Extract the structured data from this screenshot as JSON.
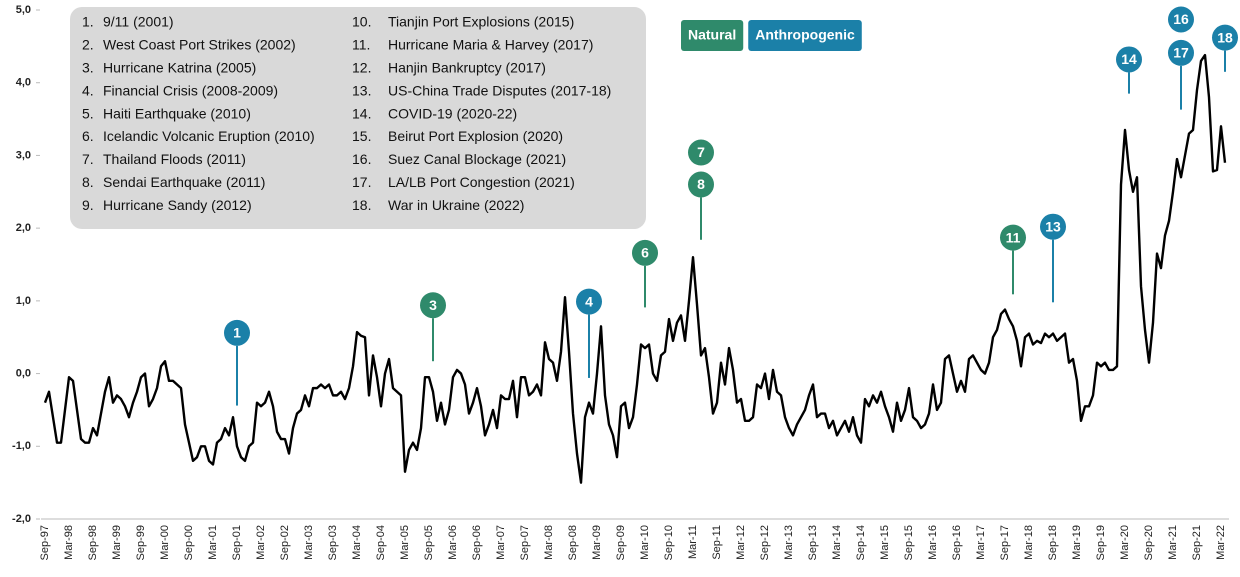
{
  "chart_data": {
    "type": "line",
    "ylim": [
      -2,
      5
    ],
    "yticks": [
      {
        "value": -2,
        "label": "-2,0"
      },
      {
        "value": -1,
        "label": "-1,0"
      },
      {
        "value": 0,
        "label": "0,0"
      },
      {
        "value": 1,
        "label": "1,0"
      },
      {
        "value": 2,
        "label": "2,0"
      },
      {
        "value": 3,
        "label": "3,0"
      },
      {
        "value": 4,
        "label": "4,0"
      },
      {
        "value": 5,
        "label": "5,0"
      }
    ],
    "color": "#000000",
    "categories": [
      "Sep-97",
      null,
      null,
      null,
      null,
      null,
      "Mar-98",
      null,
      null,
      null,
      null,
      null,
      "Sep-98",
      null,
      null,
      null,
      null,
      null,
      "Mar-99",
      null,
      null,
      null,
      null,
      null,
      "Sep-99",
      null,
      null,
      null,
      null,
      null,
      "Mar-00",
      null,
      null,
      null,
      null,
      null,
      "Sep-00",
      null,
      null,
      null,
      null,
      null,
      "Mar-01",
      null,
      null,
      null,
      null,
      null,
      "Sep-01",
      null,
      null,
      null,
      null,
      null,
      "Mar-02",
      null,
      null,
      null,
      null,
      null,
      "Sep-02",
      null,
      null,
      null,
      null,
      null,
      "Mar-03",
      null,
      null,
      null,
      null,
      null,
      "Sep-03",
      null,
      null,
      null,
      null,
      null,
      "Mar-04",
      null,
      null,
      null,
      null,
      null,
      "Sep-04",
      null,
      null,
      null,
      null,
      null,
      "Mar-05",
      null,
      null,
      null,
      null,
      null,
      "Sep-05",
      null,
      null,
      null,
      null,
      null,
      "Mar-06",
      null,
      null,
      null,
      null,
      null,
      "Sep-06",
      null,
      null,
      null,
      null,
      null,
      "Mar-07",
      null,
      null,
      null,
      null,
      null,
      "Sep-07",
      null,
      null,
      null,
      null,
      null,
      "Mar-08",
      null,
      null,
      null,
      null,
      null,
      "Sep-08",
      null,
      null,
      null,
      null,
      null,
      "Mar-09",
      null,
      null,
      null,
      null,
      null,
      "Sep-09",
      null,
      null,
      null,
      null,
      null,
      "Mar-10",
      null,
      null,
      null,
      null,
      null,
      "Sep-10",
      null,
      null,
      null,
      null,
      null,
      "Mar-11",
      null,
      null,
      null,
      null,
      null,
      "Sep-11",
      null,
      null,
      null,
      null,
      null,
      "Mar-12",
      null,
      null,
      null,
      null,
      null,
      "Sep-12",
      null,
      null,
      null,
      null,
      null,
      "Mar-13",
      null,
      null,
      null,
      null,
      null,
      "Sep-13",
      null,
      null,
      null,
      null,
      null,
      "Mar-14",
      null,
      null,
      null,
      null,
      null,
      "Sep-14",
      null,
      null,
      null,
      null,
      null,
      "Mar-15",
      null,
      null,
      null,
      null,
      null,
      "Sep-15",
      null,
      null,
      null,
      null,
      null,
      "Mar-16",
      null,
      null,
      null,
      null,
      null,
      "Sep-16",
      null,
      null,
      null,
      null,
      null,
      "Mar-17",
      null,
      null,
      null,
      null,
      null,
      "Sep-17",
      null,
      null,
      null,
      null,
      null,
      "Mar-18",
      null,
      null,
      null,
      null,
      null,
      "Sep-18",
      null,
      null,
      null,
      null,
      null,
      "Mar-19",
      null,
      null,
      null,
      null,
      null,
      "Sep-19",
      null,
      null,
      null,
      null,
      null,
      "Mar-20",
      null,
      null,
      null,
      null,
      null,
      "Sep-20",
      null,
      null,
      null,
      null,
      null,
      "Mar-21",
      null,
      null,
      null,
      null,
      null,
      "Sep-21",
      null,
      null,
      null,
      null,
      null,
      "Mar-22",
      null
    ],
    "values": [
      -0.4,
      -0.25,
      -0.6,
      -0.95,
      -0.95,
      -0.5,
      -0.05,
      -0.1,
      -0.5,
      -0.9,
      -0.95,
      -0.95,
      -0.75,
      -0.85,
      -0.55,
      -0.25,
      -0.05,
      -0.4,
      -0.3,
      -0.35,
      -0.45,
      -0.6,
      -0.4,
      -0.25,
      -0.05,
      0,
      -0.45,
      -0.35,
      -0.2,
      0.1,
      0.17,
      -0.1,
      -0.1,
      -0.15,
      -0.2,
      -0.7,
      -0.95,
      -1.2,
      -1.15,
      -1,
      -1,
      -1.2,
      -1.25,
      -0.95,
      -0.9,
      -0.75,
      -0.85,
      -0.6,
      -1,
      -1.15,
      -1.2,
      -1,
      -0.95,
      -0.4,
      -0.45,
      -0.4,
      -0.25,
      -0.45,
      -0.8,
      -0.9,
      -0.9,
      -1.1,
      -0.75,
      -0.55,
      -0.5,
      -0.3,
      -0.45,
      -0.2,
      -0.2,
      -0.15,
      -0.2,
      -0.15,
      -0.3,
      -0.3,
      -0.25,
      -0.35,
      -0.2,
      0.1,
      0.57,
      0.52,
      0.5,
      -0.3,
      0.25,
      -0.05,
      -0.45,
      0,
      0.2,
      -0.2,
      -0.25,
      -0.3,
      -1.35,
      -1.05,
      -0.95,
      -1.05,
      -0.75,
      -0.05,
      -0.05,
      -0.25,
      -0.65,
      -0.4,
      -0.7,
      -0.5,
      -0.05,
      0.05,
      0,
      -0.15,
      -0.55,
      -0.4,
      -0.2,
      -0.45,
      -0.85,
      -0.7,
      -0.5,
      -0.75,
      -0.3,
      -0.35,
      -0.35,
      -0.1,
      -0.6,
      -0.05,
      -0.05,
      -0.3,
      -0.25,
      -0.15,
      -0.3,
      0.43,
      0.2,
      0.15,
      -0.1,
      0.3,
      1.05,
      0.3,
      -0.55,
      -1.1,
      -1.5,
      -0.6,
      -0.4,
      -0.55,
      0,
      0.65,
      -0.3,
      -0.7,
      -0.85,
      -1.15,
      -0.45,
      -0.4,
      -0.75,
      -0.6,
      -0.15,
      0.4,
      0.35,
      0.4,
      0,
      -0.1,
      0.25,
      0.3,
      0.75,
      0.45,
      0.7,
      0.8,
      0.45,
      1.0,
      1.6,
      0.95,
      0.25,
      0.35,
      -0.05,
      -0.55,
      -0.4,
      0.15,
      -0.15,
      0.35,
      0.05,
      -0.4,
      -0.35,
      -0.65,
      -0.65,
      -0.6,
      -0.15,
      -0.2,
      0,
      -0.35,
      0.05,
      -0.25,
      -0.3,
      -0.6,
      -0.75,
      -0.85,
      -0.7,
      -0.6,
      -0.5,
      -0.3,
      -0.15,
      -0.6,
      -0.55,
      -0.55,
      -0.75,
      -0.65,
      -0.85,
      -0.75,
      -0.65,
      -0.8,
      -0.6,
      -0.85,
      -0.95,
      -0.35,
      -0.45,
      -0.3,
      -0.4,
      -0.25,
      -0.45,
      -0.6,
      -0.8,
      -0.4,
      -0.65,
      -0.5,
      -0.2,
      -0.6,
      -0.65,
      -0.75,
      -0.7,
      -0.55,
      -0.15,
      -0.5,
      -0.4,
      0.2,
      0.25,
      0,
      -0.25,
      -0.1,
      -0.25,
      0.2,
      0.25,
      0.15,
      0.05,
      0,
      0.15,
      0.5,
      0.6,
      0.82,
      0.88,
      0.75,
      0.65,
      0.45,
      0.1,
      0.5,
      0.55,
      0.4,
      0.45,
      0.42,
      0.55,
      0.5,
      0.55,
      0.45,
      0.5,
      0.55,
      0.15,
      0.2,
      -0.1,
      -0.65,
      -0.45,
      -0.45,
      -0.3,
      0.15,
      0.1,
      0.15,
      0.05,
      0.05,
      0.1,
      2.6,
      3.35,
      2.8,
      2.5,
      2.7,
      1.2,
      0.6,
      0.15,
      0.7,
      1.65,
      1.45,
      1.9,
      2.1,
      2.5,
      2.95,
      2.7,
      3.0,
      3.3,
      3.35,
      3.9,
      4.3,
      4.38,
      3.8,
      2.78,
      2.8,
      3.4,
      2.9
    ],
    "legend": [
      {
        "name": "Natural",
        "color": "#2f8a6b"
      },
      {
        "name": "Anthropogenic",
        "color": "#1b80a8"
      }
    ],
    "events": [
      {
        "num": "1.",
        "name": "9/11 (2001)"
      },
      {
        "num": "2.",
        "name": "West Coast Port Strikes (2002)"
      },
      {
        "num": "3.",
        "name": "Hurricane Katrina (2005)"
      },
      {
        "num": "4.",
        "name": "Financial Crisis (2008-2009)"
      },
      {
        "num": "5.",
        "name": "Haiti Earthquake (2010)"
      },
      {
        "num": "6.",
        "name": "Icelandic Volcanic Eruption (2010)"
      },
      {
        "num": "7.",
        "name": "Thailand Floods (2011)"
      },
      {
        "num": "8.",
        "name": "Sendai Earthquake (2011)"
      },
      {
        "num": "9.",
        "name": "Hurricane Sandy (2012)"
      },
      {
        "num": "10.",
        "name": "Tianjin Port Explosions (2015)"
      },
      {
        "num": "11.",
        "name": "Hurricane Maria & Harvey (2017)"
      },
      {
        "num": "12.",
        "name": "Hanjin Bankruptcy (2017)"
      },
      {
        "num": "13.",
        "name": "US-China Trade Disputes (2017-18)"
      },
      {
        "num": "14.",
        "name": "COVID-19 (2020-22)"
      },
      {
        "num": "15.",
        "name": "Beirut Port Explosion (2020)"
      },
      {
        "num": "16.",
        "name": "Suez Canal Blockage (2021)"
      },
      {
        "num": "17.",
        "name": "LA/LB Port Congestion (2021)"
      },
      {
        "num": "18.",
        "name": "War in Ukraine (2022)"
      }
    ],
    "annotations": [
      {
        "label": "1",
        "x": 48,
        "y": 0.56,
        "stem_to": -0.44,
        "color": "#1b80a8"
      },
      {
        "label": "3",
        "x": 97,
        "y": 0.94,
        "stem_to": 0.17,
        "color": "#2f8a6b"
      },
      {
        "label": "4",
        "x": 136,
        "y": 0.99,
        "stem_to": -0.06,
        "color": "#1b80a8"
      },
      {
        "label": "6",
        "x": 150,
        "y": 1.66,
        "stem_to": 0.91,
        "color": "#2f8a6b"
      },
      {
        "label": "7",
        "x": 164,
        "y": 3.04,
        "color": "#2f8a6b"
      },
      {
        "label": "8",
        "x": 164,
        "y": 2.6,
        "stem_to": 1.84,
        "color": "#2f8a6b"
      },
      {
        "label": "11",
        "x": 242,
        "y": 1.87,
        "stem_to": 1.09,
        "color": "#2f8a6b"
      },
      {
        "label": "13",
        "x": 252,
        "y": 2.02,
        "stem_to": 0.98,
        "color": "#1b80a8"
      },
      {
        "label": "14",
        "x": 271,
        "y": 4.32,
        "stem_to": 3.85,
        "color": "#1b80a8"
      },
      {
        "label": "16",
        "x": 284,
        "y": 4.87,
        "color": "#1b80a8"
      },
      {
        "label": "17",
        "x": 284,
        "y": 4.41,
        "stem_to": 3.63,
        "color": "#1b80a8"
      },
      {
        "label": "18",
        "x": 295,
        "y": 4.62,
        "stem_to": 4.15,
        "color": "#1b80a8"
      }
    ]
  }
}
